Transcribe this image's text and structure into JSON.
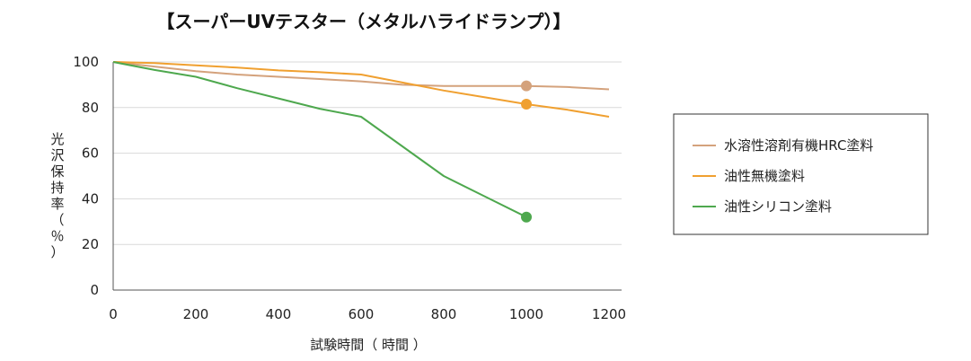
{
  "chart_data": {
    "type": "line",
    "title": "【スーパーUVテスター（メタルハライドランプ）】",
    "xlabel": "試験時間（ 時間 ）",
    "ylabel": "光沢保持率（％）",
    "xlim": [
      0,
      1200
    ],
    "ylim": [
      0,
      100
    ],
    "xticks": [
      "0",
      "200",
      "400",
      "600",
      "800",
      "1000",
      "1200"
    ],
    "yticks": [
      "0",
      "20",
      "40",
      "60",
      "80",
      "100"
    ],
    "grid": "horizontal",
    "legend_position": "right",
    "series": [
      {
        "name": "水溶性溶剤有機HRC塗料",
        "color": "#D4A27C",
        "points": [
          [
            0,
            100
          ],
          [
            200,
            96
          ],
          [
            300,
            94.5
          ],
          [
            400,
            93.5
          ],
          [
            500,
            92.5
          ],
          [
            600,
            91.5
          ],
          [
            700,
            90
          ],
          [
            800,
            89.5
          ],
          [
            900,
            89.5
          ],
          [
            1000,
            89.5
          ],
          [
            1100,
            89
          ],
          [
            1200,
            88
          ]
        ],
        "marker_at": 1000
      },
      {
        "name": "油性無機塗料",
        "color": "#F0A030",
        "points": [
          [
            0,
            100
          ],
          [
            100,
            99.5
          ],
          [
            200,
            98.5
          ],
          [
            300,
            97.5
          ],
          [
            400,
            96.3
          ],
          [
            500,
            95.5
          ],
          [
            600,
            94.5
          ],
          [
            700,
            91
          ],
          [
            800,
            87.5
          ],
          [
            900,
            84.5
          ],
          [
            1000,
            81.5
          ],
          [
            1100,
            79
          ],
          [
            1200,
            76
          ]
        ],
        "marker_at": 1000
      },
      {
        "name": "油性シリコン塗料",
        "color": "#4EA84E",
        "points": [
          [
            0,
            100
          ],
          [
            100,
            96.5
          ],
          [
            200,
            93.5
          ],
          [
            300,
            88.5
          ],
          [
            400,
            84
          ],
          [
            500,
            79.5
          ],
          [
            600,
            76
          ],
          [
            700,
            63
          ],
          [
            800,
            50
          ],
          [
            900,
            41
          ],
          [
            1000,
            32
          ]
        ],
        "marker_at": 1000
      }
    ]
  }
}
